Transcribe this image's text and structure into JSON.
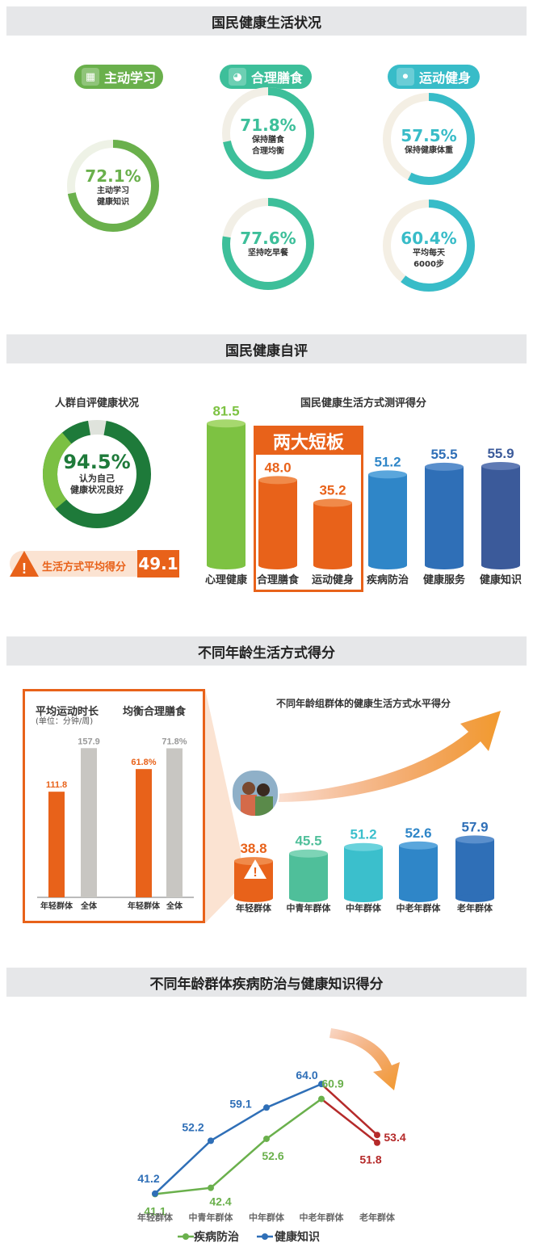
{
  "colors": {
    "green": "#6ab04c",
    "teal": "#3dbf9a",
    "cyan": "#38bcc8",
    "orange": "#e8621a",
    "gray": "#c8c6c2",
    "darkgreen": "#1e7a3a",
    "blue": "#2f6fb7",
    "lineGreen": "#6ab04c",
    "lineBlue": "#2f6fb7",
    "red": "#b52a2a"
  },
  "section1": {
    "title": "国民健康生活状况",
    "pill_learn": "主动学习",
    "pill_diet": "合理膳食",
    "pill_sport": "运动健身",
    "donuts": [
      {
        "pct": "72.1%",
        "value": 72.1,
        "lines": [
          "主动学习",
          "健康知识"
        ]
      },
      {
        "pct": "71.8%",
        "value": 71.8,
        "lines": [
          "保持膳食",
          "合理均衡"
        ]
      },
      {
        "pct": "77.6%",
        "value": 77.6,
        "lines": [
          "坚持吃早餐"
        ]
      },
      {
        "pct": "57.5%",
        "value": 57.5,
        "lines": [
          "保持健康体重"
        ]
      },
      {
        "pct": "60.4%",
        "value": 60.4,
        "lines": [
          "平均每天",
          "6000步"
        ]
      }
    ]
  },
  "section2": {
    "title": "国民健康自评",
    "left_title": "人群自评健康状况",
    "donut_pct": "94.5%",
    "donut_value": 94.5,
    "donut_lines": [
      "认为自己",
      "健康状况良好"
    ],
    "avg_label": "生活方式平均得分",
    "avg_value": "49.1",
    "right_title": "国民健康生活方式测评得分",
    "callout": "两大短板"
  },
  "section3": {
    "title": "不同年龄生活方式得分",
    "box_title1": "平均运动时长",
    "box_unit": "(单位：分钟/周)",
    "box_title2": "均衡合理膳食",
    "right_title": "不同年龄组群体的健康生活方式水平得分"
  },
  "section4": {
    "title": "不同年龄群体疾病防治与健康知识得分"
  },
  "chart_data": [
    {
      "type": "bar",
      "title": "国民健康生活方式测评得分",
      "categories": [
        "心理健康",
        "合理膳食",
        "运动健身",
        "疾病防治",
        "健康服务",
        "健康知识"
      ],
      "values": [
        81.5,
        48.0,
        35.2,
        51.2,
        55.5,
        55.9
      ],
      "labels": [
        "81.5",
        "48.0",
        "35.2",
        "51.2",
        "55.5",
        "55.9"
      ]
    },
    {
      "type": "bar",
      "title": "平均运动时长",
      "categories": [
        "年轻群体",
        "全体"
      ],
      "values": [
        111.8,
        157.9
      ],
      "labels": [
        "111.8",
        "157.9"
      ]
    },
    {
      "type": "bar",
      "title": "均衡合理膳食",
      "categories": [
        "年轻群体",
        "全体"
      ],
      "values": [
        61.8,
        71.8
      ],
      "labels": [
        "61.8%",
        "71.8%"
      ]
    },
    {
      "type": "bar",
      "title": "不同年龄组群体的健康生活方式水平得分",
      "categories": [
        "年轻群体",
        "中青年群体",
        "中年群体",
        "中老年群体",
        "老年群体"
      ],
      "values": [
        38.8,
        45.5,
        51.2,
        52.6,
        57.9
      ],
      "labels": [
        "38.8",
        "45.5",
        "51.2",
        "52.6",
        "57.9"
      ]
    },
    {
      "type": "line",
      "title": "不同年龄群体疾病防治与健康知识得分",
      "categories": [
        "年轻群体",
        "中青年群体",
        "中年群体",
        "中老年群体",
        "老年群体"
      ],
      "series": [
        {
          "name": "疾病防治",
          "values": [
            41.1,
            42.4,
            52.6,
            60.9,
            51.8
          ],
          "labels": [
            "41.1",
            "42.4",
            "52.6",
            "60.9",
            "51.8"
          ]
        },
        {
          "name": "健康知识",
          "values": [
            41.2,
            52.2,
            59.1,
            64.0,
            53.4
          ],
          "labels": [
            "41.2",
            "52.2",
            "59.1",
            "64.0",
            "53.4"
          ]
        }
      ]
    }
  ]
}
